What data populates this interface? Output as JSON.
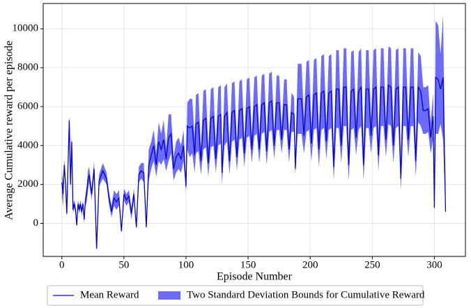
{
  "chart_data": {
    "type": "line_band",
    "xlabel": "Episode Number",
    "ylabel": "Average Cumulative reward per episode",
    "x": [
      0,
      1,
      2,
      3,
      4,
      5,
      6,
      7,
      8,
      9,
      10,
      11,
      12,
      13,
      14,
      15,
      16,
      17,
      18,
      19,
      20,
      21,
      22,
      24,
      26,
      28,
      30,
      33,
      36,
      38,
      40,
      42,
      44,
      46,
      48,
      50,
      52,
      54,
      56,
      58,
      60,
      62,
      64,
      66,
      68,
      70,
      72,
      74,
      76,
      78,
      80,
      82,
      84,
      86,
      88,
      90,
      92,
      94,
      96,
      98,
      100,
      101,
      103,
      105,
      107,
      108,
      110,
      112,
      114,
      116,
      118,
      120,
      122,
      124,
      126,
      128,
      129,
      131,
      133,
      135,
      137,
      139,
      141,
      143,
      145,
      147,
      149,
      151,
      153,
      155,
      157,
      159,
      161,
      163,
      165,
      167,
      169,
      171,
      173,
      175,
      177,
      179,
      181,
      183,
      185,
      187,
      188,
      190,
      193,
      195,
      197,
      199,
      201,
      203,
      205,
      207,
      209,
      211,
      213,
      215,
      217,
      219,
      221,
      223,
      225,
      227,
      229,
      231,
      233,
      235,
      237,
      239,
      241,
      243,
      245,
      247,
      249,
      251,
      253,
      255,
      257,
      259,
      261,
      263,
      265,
      267,
      269,
      271,
      273,
      275,
      277,
      279,
      281,
      283,
      285,
      287,
      289,
      291,
      293,
      295,
      297,
      299,
      300,
      301,
      303,
      305,
      307,
      309
    ],
    "series": [
      {
        "name": "Mean Reward",
        "color": "#0000dd",
        "values": [
          2100,
          1500,
          3000,
          2000,
          500,
          3000,
          5300,
          2000,
          4200,
          700,
          1000,
          700,
          -100,
          1000,
          700,
          1000,
          600,
          1000,
          200,
          1200,
          1500,
          2200,
          2500,
          1500,
          2800,
          -1300,
          2200,
          2700,
          2300,
          1300,
          600,
          1300,
          1100,
          1300,
          -400,
          1500,
          1200,
          1400,
          500,
          1500,
          -200,
          2500,
          2700,
          2600,
          -200,
          3000,
          3500,
          4000,
          3000,
          4200,
          3800,
          4300,
          3300,
          4400,
          4600,
          2800,
          3400,
          3600,
          3300,
          4000,
          1900,
          5000,
          4900,
          5000,
          3500,
          5100,
          5200,
          3200,
          5300,
          5400,
          3100,
          5400,
          5500,
          3300,
          5500,
          5600,
          2600,
          5500,
          5700,
          3200,
          5700,
          5800,
          3400,
          5800,
          5900,
          3600,
          5900,
          6000,
          3800,
          6000,
          6100,
          3800,
          6100,
          6200,
          3700,
          6200,
          6300,
          4000,
          6200,
          6200,
          4300,
          6100,
          6100,
          3800,
          5700,
          5600,
          2800,
          6400,
          6400,
          4500,
          6500,
          6600,
          4100,
          6600,
          6700,
          3800,
          6700,
          6800,
          4200,
          6700,
          6800,
          2900,
          6900,
          6900,
          4000,
          7000,
          7000,
          3000,
          6800,
          6900,
          4400,
          6800,
          7000,
          3000,
          6900,
          6900,
          4500,
          6900,
          7000,
          3500,
          7000,
          7000,
          4300,
          7100,
          7000,
          4000,
          6900,
          7000,
          2300,
          7000,
          7000,
          4300,
          7000,
          7000,
          3200,
          7000,
          6800,
          5800,
          5800,
          5900,
          4400,
          5500,
          800,
          7500,
          7400,
          6900,
          7500,
          600
        ]
      },
      {
        "name": "Two Standard Deviation Bounds for Cumulative Reward",
        "color": "#6b6bff",
        "errors": [
          700,
          600,
          300,
          300,
          200,
          400,
          300,
          300,
          400,
          200,
          200,
          200,
          100,
          200,
          200,
          200,
          200,
          200,
          200,
          300,
          400,
          500,
          400,
          300,
          400,
          100,
          300,
          400,
          300,
          300,
          300,
          400,
          400,
          400,
          100,
          300,
          300,
          300,
          300,
          300,
          100,
          400,
          400,
          500,
          100,
          800,
          700,
          800,
          600,
          1000,
          800,
          1000,
          600,
          1200,
          1000,
          600,
          800,
          800,
          700,
          800,
          300,
          1200,
          1500,
          1400,
          900,
          1500,
          1500,
          700,
          1500,
          1500,
          700,
          1500,
          1500,
          700,
          1500,
          1500,
          600,
          1500,
          1500,
          700,
          1500,
          1500,
          700,
          1500,
          1500,
          700,
          1500,
          1500,
          700,
          1500,
          1500,
          700,
          1500,
          1500,
          700,
          1500,
          1500,
          700,
          1400,
          1400,
          700,
          1300,
          1300,
          700,
          1000,
          900,
          300,
          1800,
          1800,
          900,
          1800,
          1800,
          900,
          1800,
          1800,
          900,
          1900,
          1900,
          900,
          1900,
          1900,
          700,
          2000,
          2000,
          900,
          2000,
          2000,
          800,
          2000,
          2000,
          900,
          2000,
          2000,
          800,
          2000,
          2000,
          900,
          2000,
          2000,
          800,
          2000,
          2000,
          900,
          2000,
          2000,
          900,
          2000,
          2000,
          600,
          2000,
          2000,
          900,
          2000,
          2000,
          800,
          1800,
          1800,
          1200,
          1200,
          1200,
          800,
          1200,
          200,
          2900,
          2800,
          1800,
          3200,
          300
        ]
      }
    ],
    "xlim": [
      -15,
      325
    ],
    "xticks": [
      0,
      50,
      100,
      150,
      200,
      250,
      300
    ],
    "ylim": [
      -1700,
      11300
    ],
    "yticks": [
      0,
      2000,
      4000,
      6000,
      8000,
      10000
    ],
    "grid": true,
    "legend": "lower center"
  }
}
